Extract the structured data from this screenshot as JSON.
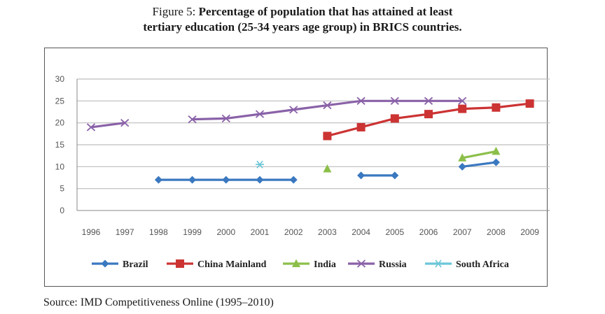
{
  "title": {
    "prefix": "Figure 5: ",
    "line1": "Percentage of population that has attained at least",
    "line2": "tertiary education (25-34 years age group) in BRICS countries."
  },
  "source": "Source: IMD Competitiveness Online (1995–2010)",
  "chart_data": {
    "type": "line",
    "x": [
      "1996",
      "1997",
      "1998",
      "1999",
      "2000",
      "2001",
      "2002",
      "2003",
      "2004",
      "2005",
      "2006",
      "2007",
      "2008",
      "2009"
    ],
    "ylim": [
      0,
      30
    ],
    "yticks": [
      "0",
      "5",
      "10",
      "15",
      "20",
      "25",
      "30"
    ],
    "grid": true,
    "legend_position": "bottom",
    "series": [
      {
        "name": "Brazil",
        "color": "#3a78c0",
        "marker": "diamond",
        "values": [
          null,
          null,
          7,
          7,
          7,
          7,
          7,
          null,
          8,
          8,
          null,
          10,
          11,
          null
        ]
      },
      {
        "name": "China Mainland",
        "color": "#cc3333",
        "marker": "square",
        "values": [
          null,
          null,
          null,
          null,
          null,
          null,
          null,
          17,
          19,
          21,
          22,
          23.2,
          23.5,
          24.4
        ]
      },
      {
        "name": "India",
        "color": "#8cbf4a",
        "marker": "triangle",
        "values": [
          null,
          null,
          null,
          null,
          null,
          null,
          null,
          9.5,
          null,
          null,
          null,
          12,
          13.5,
          null
        ]
      },
      {
        "name": "Russia",
        "color": "#8a62a8",
        "marker": "x",
        "values": [
          19,
          20,
          null,
          20.8,
          21,
          22,
          23,
          24,
          25,
          25,
          25,
          25,
          null,
          null
        ]
      },
      {
        "name": "South Africa",
        "color": "#6ac6d8",
        "marker": "star",
        "values": [
          null,
          null,
          null,
          null,
          null,
          10.5,
          null,
          null,
          null,
          null,
          null,
          null,
          null,
          null
        ]
      }
    ]
  }
}
